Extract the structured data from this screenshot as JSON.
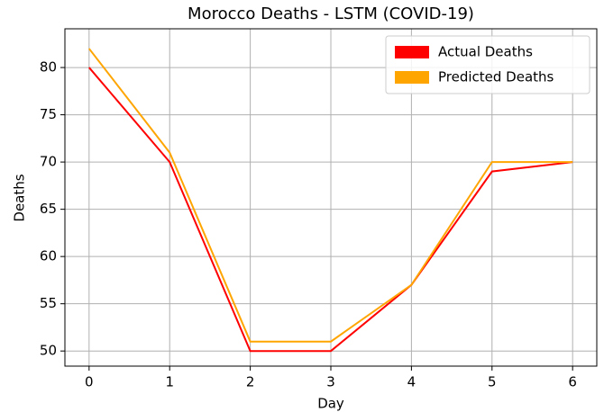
{
  "chart_data": {
    "type": "line",
    "title": "Morocco Deaths - LSTM (COVID-19)",
    "xlabel": "Day",
    "ylabel": "Deaths",
    "x": [
      0,
      1,
      2,
      3,
      4,
      5,
      6
    ],
    "series": [
      {
        "name": "Actual Deaths",
        "color": "#ff0000",
        "values": [
          80,
          70,
          50,
          50,
          57,
          69,
          70
        ]
      },
      {
        "name": "Predicted Deaths",
        "color": "#ffa500",
        "values": [
          82,
          71,
          51,
          51,
          57,
          70,
          70
        ]
      }
    ],
    "xlim": [
      -0.3,
      6.3
    ],
    "xticks": [
      0,
      1,
      2,
      3,
      4,
      5,
      6
    ],
    "ylim": [
      48.4,
      84.1
    ],
    "yticks": [
      50,
      55,
      60,
      65,
      70,
      75,
      80
    ],
    "grid": true,
    "legend": "upper right"
  }
}
